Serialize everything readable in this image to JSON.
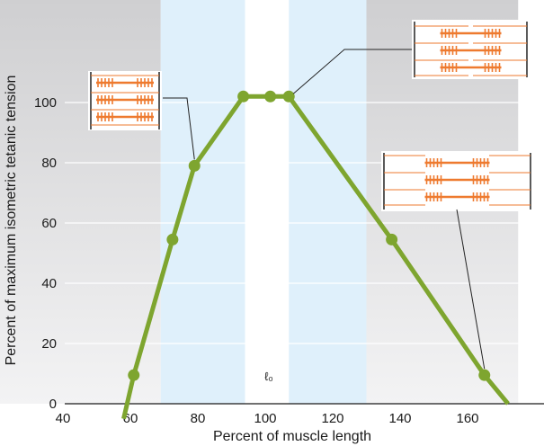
{
  "chart_data": {
    "type": "line",
    "xlabel": "Percent of muscle length",
    "ylabel": "Percent of maximum isometric tetanic tension",
    "xlim": [
      40,
      175
    ],
    "ylim": [
      0,
      135
    ],
    "x_ticks": [
      "40",
      "60",
      "80",
      "100",
      "120",
      "140",
      "160"
    ],
    "y_ticks": [
      "0",
      "20",
      "40",
      "60",
      "80",
      "100"
    ],
    "x_tick_values": [
      40,
      60,
      80,
      100,
      120,
      140,
      160
    ],
    "y_tick_values": [
      0,
      20,
      40,
      60,
      80,
      100
    ],
    "grid": "horizontal",
    "line_segments": [
      {
        "x": [
          58.5,
          61
        ],
        "y": [
          -5,
          8
        ]
      }
    ],
    "series": [
      {
        "x": [
          58,
          61,
          72.5,
          79,
          93.5,
          101.5,
          107,
          137.5,
          165,
          172
        ],
        "y": [
          -5,
          9.5,
          54.5,
          79,
          102,
          102,
          102,
          54.5,
          9.5,
          0
        ]
      }
    ],
    "markers": {
      "x": [
        61,
        72.5,
        79,
        93.5,
        101.5,
        107,
        137.5,
        165
      ],
      "y": [
        9.5,
        54.5,
        79,
        102,
        102,
        102,
        54.5,
        9.5
      ]
    },
    "shaded_regions": [
      {
        "from": 40,
        "to": 69,
        "style": "gray"
      },
      {
        "from": 69,
        "to": 94,
        "style": "light-blue"
      },
      {
        "from": 94,
        "to": 107,
        "style": "white"
      },
      {
        "from": 107,
        "to": 130,
        "style": "light-blue"
      },
      {
        "from": 130,
        "to": 175,
        "style": "gray"
      }
    ],
    "annotation": "ℓ₀",
    "colors": {
      "line": "#7ea52f",
      "marker": "#7ea52f",
      "sarcomere": "#ee7a2f",
      "gray_top": "#d0d0d2",
      "gray_bottom": "#f2f2f3",
      "light_blue": "#dff0fb"
    }
  }
}
